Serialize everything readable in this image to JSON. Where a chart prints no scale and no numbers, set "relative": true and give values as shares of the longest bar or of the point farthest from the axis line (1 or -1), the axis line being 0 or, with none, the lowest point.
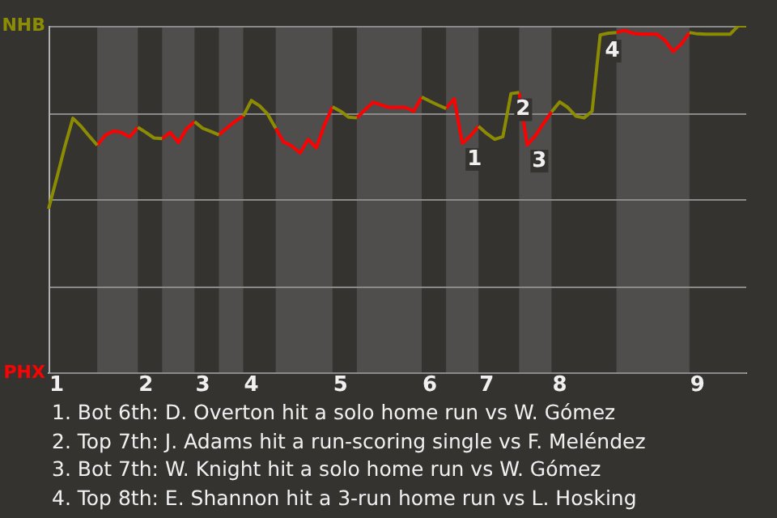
{
  "chart_data": {
    "type": "line",
    "relative": true,
    "categories": [
      null,
      "1",
      null,
      null,
      null,
      null,
      null,
      null,
      null,
      null,
      null,
      null,
      "2",
      null,
      null,
      null,
      null,
      null,
      null,
      "3",
      null,
      null,
      null,
      null,
      null,
      "4",
      null,
      null,
      null,
      null,
      null,
      null,
      null,
      null,
      null,
      null,
      "5",
      null,
      null,
      null,
      null,
      null,
      null,
      null,
      null,
      null,
      null,
      "6",
      null,
      null,
      null,
      null,
      null,
      null,
      "7",
      null,
      null,
      null,
      null,
      null,
      null,
      null,
      null,
      "8",
      null,
      null,
      null,
      null,
      null,
      null,
      null,
      null,
      null,
      null,
      null,
      null,
      null,
      null,
      null,
      null,
      "9",
      null,
      null,
      null,
      null,
      null,
      null
    ],
    "grid": "y",
    "legend": false,
    "marker": "none",
    "line_style": "solid",
    "series": [
      {
        "color": "#8c8c00",
        "values": [
          0.473,
          0.561,
          0.652,
          0.734,
          0.711,
          0.683,
          0.656,
          null,
          null,
          null,
          null,
          0.708,
          0.693,
          0.677,
          0.675,
          null,
          null,
          null,
          0.724,
          0.705,
          0.696,
          0.686,
          null,
          null,
          0.74,
          0.785,
          0.77,
          0.746,
          0.705,
          null,
          null,
          null,
          null,
          null,
          null,
          0.767,
          0.754,
          0.737,
          0.735,
          null,
          null,
          null,
          null,
          null,
          null,
          null,
          0.795,
          0.783,
          0.772,
          0.762,
          null,
          null,
          null,
          0.711,
          0.69,
          0.673,
          0.681,
          0.805,
          0.808,
          null,
          null,
          null,
          0.752,
          0.781,
          0.765,
          0.74,
          0.735,
          0.754,
          0.974,
          0.979,
          0.981,
          null,
          null,
          null,
          null,
          null,
          null,
          null,
          null,
          0.981,
          0.977,
          0.976,
          0.976,
          0.976,
          0.976,
          1,
          1
        ]
      },
      {
        "color": "#ff0000",
        "values": [
          null,
          null,
          null,
          null,
          null,
          null,
          0.656,
          0.685,
          0.697,
          0.693,
          0.68,
          0.708,
          null,
          null,
          0.675,
          0.693,
          0.664,
          0.703,
          0.724,
          null,
          null,
          0.686,
          0.706,
          0.725,
          0.74,
          null,
          null,
          null,
          0.705,
          0.665,
          0.654,
          0.634,
          0.673,
          0.649,
          0.714,
          0.767,
          null,
          null,
          0.735,
          0.758,
          0.78,
          0.772,
          0.765,
          0.765,
          0.765,
          0.754,
          0.795,
          null,
          null,
          0.762,
          0.79,
          0.662,
          0.683,
          0.711,
          null,
          null,
          null,
          null,
          0.808,
          0.657,
          0.683,
          0.719,
          0.752,
          null,
          null,
          null,
          null,
          null,
          null,
          null,
          0.981,
          0.987,
          0.979,
          0.976,
          0.976,
          0.976,
          0.958,
          0.926,
          0.948,
          0.981,
          null,
          null,
          null,
          null,
          null,
          null,
          null
        ]
      }
    ],
    "annotations": [
      "NHB",
      "PHX",
      {
        "text": "1",
        "y": 0.662
      },
      {
        "text": "2",
        "y": 0.805
      },
      {
        "text": "3",
        "y": 0.657
      },
      {
        "text": "4",
        "y": 0.974
      },
      "1. Bot 6th: D. Overton hit a solo home run vs W. Gómez",
      "2. Top 7th: J. Adams hit a run-scoring single vs F. Meléndez",
      "3. Bot 7th: W. Knight hit a solo home run vs W. Gómez",
      "4. Top 8th: E. Shannon hit a 3-run home run vs L. Hosking"
    ]
  }
}
